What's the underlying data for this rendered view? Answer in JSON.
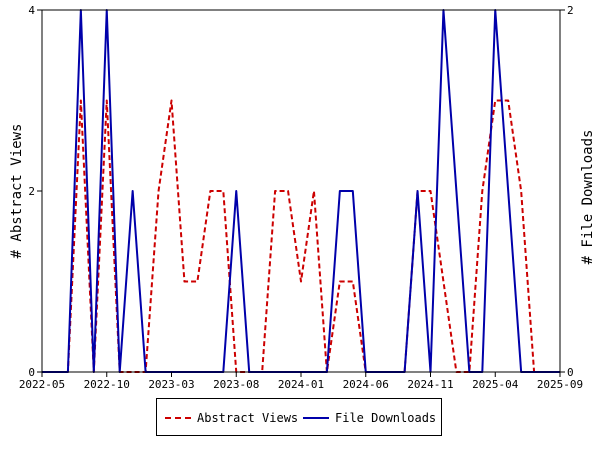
{
  "chart_data": {
    "type": "line",
    "x_tick_labels": [
      "2022-05",
      "2022-10",
      "2023-03",
      "2023-08",
      "2024-01",
      "2024-06",
      "2024-11",
      "2025-04",
      "2025-09"
    ],
    "x_range": [
      "2022-05",
      "2025-09"
    ],
    "ylabel": "# Abstract Views",
    "ylabel_right": "# File Downloads",
    "ylim": [
      0,
      4
    ],
    "ylim_right": [
      0,
      2
    ],
    "y_ticks": [
      "0",
      "2",
      "4"
    ],
    "y_ticks_right": [
      "0",
      "2"
    ],
    "grid": false,
    "legend_position": "bottom",
    "series": [
      {
        "name": "Abstract Views",
        "axis": "left",
        "color": "#cc0000",
        "style": "dashed",
        "points": [
          [
            "2022-05",
            0
          ],
          [
            "2022-07",
            0
          ],
          [
            "2022-08",
            3
          ],
          [
            "2022-09",
            0
          ],
          [
            "2022-10",
            3
          ],
          [
            "2022-11",
            0
          ],
          [
            "2022-12",
            0
          ],
          [
            "2023-01",
            0
          ],
          [
            "2023-02",
            2
          ],
          [
            "2023-03",
            3
          ],
          [
            "2023-04",
            1
          ],
          [
            "2023-05",
            1
          ],
          [
            "2023-06",
            2
          ],
          [
            "2023-07",
            2
          ],
          [
            "2023-08",
            0
          ],
          [
            "2023-09",
            0
          ],
          [
            "2023-10",
            0
          ],
          [
            "2023-11",
            2
          ],
          [
            "2023-12",
            2
          ],
          [
            "2024-01",
            1
          ],
          [
            "2024-02",
            2
          ],
          [
            "2024-03",
            0
          ],
          [
            "2024-04",
            1
          ],
          [
            "2024-05",
            1
          ],
          [
            "2024-06",
            0
          ],
          [
            "2024-07",
            0
          ],
          [
            "2024-08",
            0
          ],
          [
            "2024-09",
            0
          ],
          [
            "2024-10",
            2
          ],
          [
            "2024-11",
            2
          ],
          [
            "2024-12",
            1
          ],
          [
            "2025-01",
            0
          ],
          [
            "2025-02",
            0
          ],
          [
            "2025-03",
            2
          ],
          [
            "2025-04",
            3
          ],
          [
            "2025-05",
            3
          ],
          [
            "2025-06",
            2
          ],
          [
            "2025-07",
            0
          ]
        ]
      },
      {
        "name": "File Downloads",
        "axis": "right",
        "color": "#0000aa",
        "style": "solid",
        "points": [
          [
            "2022-05",
            0
          ],
          [
            "2022-07",
            0
          ],
          [
            "2022-08",
            2
          ],
          [
            "2022-09",
            0
          ],
          [
            "2022-10",
            2
          ],
          [
            "2022-11",
            0
          ],
          [
            "2022-12",
            1
          ],
          [
            "2023-01",
            0
          ],
          [
            "2023-02",
            0
          ],
          [
            "2023-03",
            0
          ],
          [
            "2023-04",
            0
          ],
          [
            "2023-05",
            0
          ],
          [
            "2023-06",
            0
          ],
          [
            "2023-07",
            0
          ],
          [
            "2023-08",
            1
          ],
          [
            "2023-09",
            0
          ],
          [
            "2023-10",
            0
          ],
          [
            "2023-11",
            0
          ],
          [
            "2023-12",
            0
          ],
          [
            "2024-01",
            0
          ],
          [
            "2024-02",
            0
          ],
          [
            "2024-03",
            0
          ],
          [
            "2024-04",
            1
          ],
          [
            "2024-05",
            1
          ],
          [
            "2024-06",
            0
          ],
          [
            "2024-07",
            0
          ],
          [
            "2024-08",
            0
          ],
          [
            "2024-09",
            0
          ],
          [
            "2024-10",
            1
          ],
          [
            "2024-11",
            0
          ],
          [
            "2024-12",
            2
          ],
          [
            "2025-01",
            1
          ],
          [
            "2025-02",
            0
          ],
          [
            "2025-03",
            0
          ],
          [
            "2025-04",
            2
          ],
          [
            "2025-05",
            1
          ],
          [
            "2025-06",
            0
          ],
          [
            "2025-07",
            0
          ],
          [
            "2025-08",
            0
          ],
          [
            "2025-09",
            0
          ]
        ]
      }
    ]
  }
}
